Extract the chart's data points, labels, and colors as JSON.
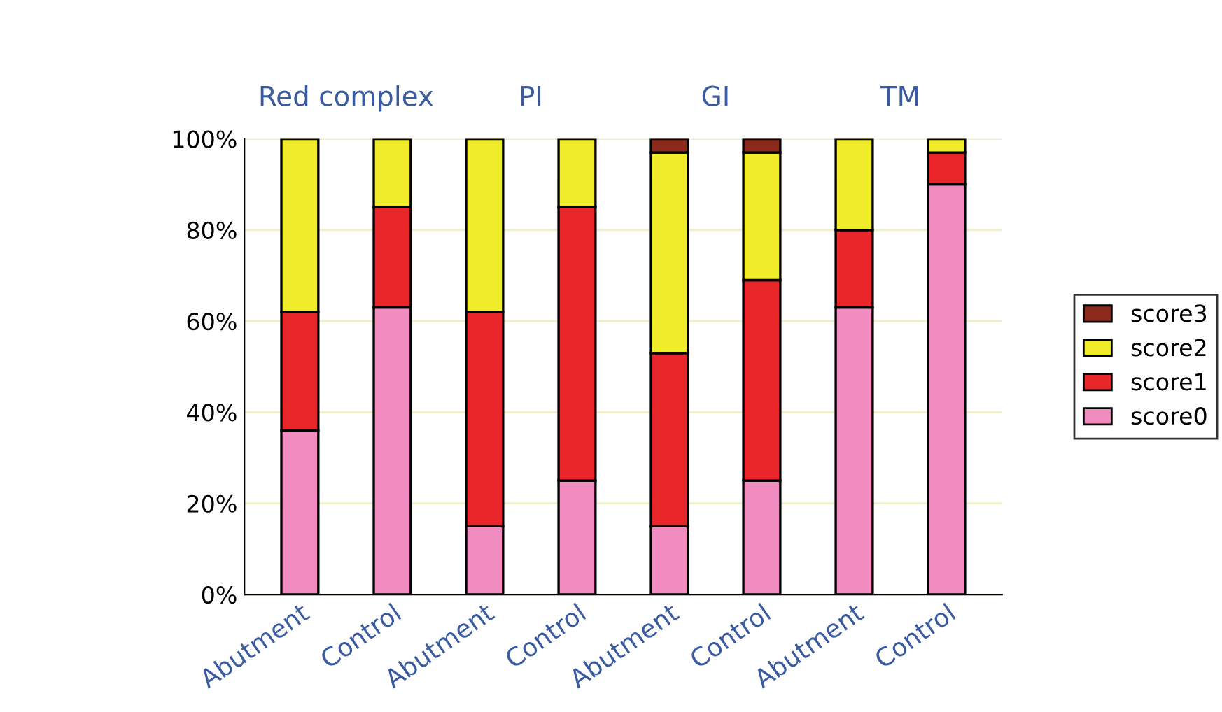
{
  "chart_data": {
    "type": "bar",
    "stacked": true,
    "categories": [
      "Abutment",
      "Control",
      "Abutment",
      "Control",
      "Abutment",
      "Control",
      "Abutment",
      "Control"
    ],
    "series": [
      {
        "name": "score0",
        "color": "#f08cc0",
        "values": [
          36,
          63,
          15,
          25,
          15,
          25,
          63,
          90
        ]
      },
      {
        "name": "score1",
        "color": "#e8262a",
        "values": [
          26,
          22,
          47,
          60,
          38,
          44,
          17,
          7
        ]
      },
      {
        "name": "score2",
        "color": "#f0ec2a",
        "values": [
          38,
          15,
          38,
          15,
          44,
          28,
          20,
          3
        ]
      },
      {
        "name": "score3",
        "color": "#8b2a1a",
        "values": [
          null,
          null,
          null,
          null,
          3,
          3,
          null,
          null
        ]
      }
    ],
    "annotations": [
      "Red complex",
      "PI",
      "GI",
      "TM"
    ],
    "ylim": [
      0,
      100
    ],
    "yticks": [
      {
        "value": 0,
        "label": "0%"
      },
      {
        "value": 20,
        "label": "20%"
      },
      {
        "value": 40,
        "label": "40%"
      },
      {
        "value": 60,
        "label": "60%"
      },
      {
        "value": 80,
        "label": "80%"
      },
      {
        "value": 100,
        "label": "100%"
      }
    ],
    "grid": "y",
    "legend": "right"
  }
}
